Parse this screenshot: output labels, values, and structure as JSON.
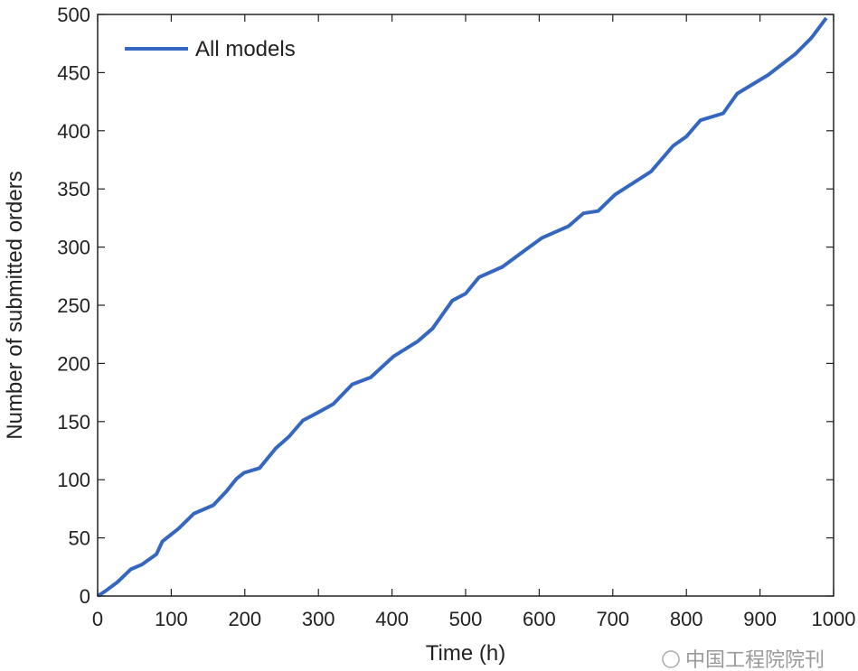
{
  "chart_data": {
    "type": "line",
    "title": "",
    "xlabel": "Time (h)",
    "ylabel": "Number of submitted orders",
    "xlim": [
      0,
      1000
    ],
    "ylim": [
      0,
      500
    ],
    "xticks": [
      0,
      100,
      200,
      300,
      400,
      500,
      600,
      700,
      800,
      900,
      1000
    ],
    "yticks": [
      0,
      50,
      100,
      150,
      200,
      250,
      300,
      350,
      400,
      450,
      500
    ],
    "grid": false,
    "legend_position": "top-left",
    "series": [
      {
        "name": "All models",
        "color": "#3566c0",
        "x": [
          0,
          10,
          27,
          45,
          60,
          80,
          88,
          110,
          131,
          157,
          175,
          189,
          199,
          220,
          242,
          260,
          279,
          297,
          320,
          346,
          371,
          402,
          435,
          455,
          482,
          500,
          518,
          550,
          580,
          604,
          640,
          660,
          680,
          703,
          752,
          782,
          800,
          819,
          850,
          869,
          911,
          948,
          970,
          990
        ],
        "y": [
          0,
          4,
          12,
          23,
          27,
          36,
          47,
          58,
          71,
          78,
          90,
          101,
          106,
          110,
          127,
          137,
          151,
          157,
          165,
          182,
          188,
          206,
          219,
          230,
          254,
          260,
          274,
          283,
          297,
          308,
          318,
          329,
          331,
          345,
          365,
          387,
          395,
          409,
          415,
          432,
          448,
          466,
          480,
          497
        ]
      }
    ]
  },
  "watermark": "中国工程院院刊"
}
